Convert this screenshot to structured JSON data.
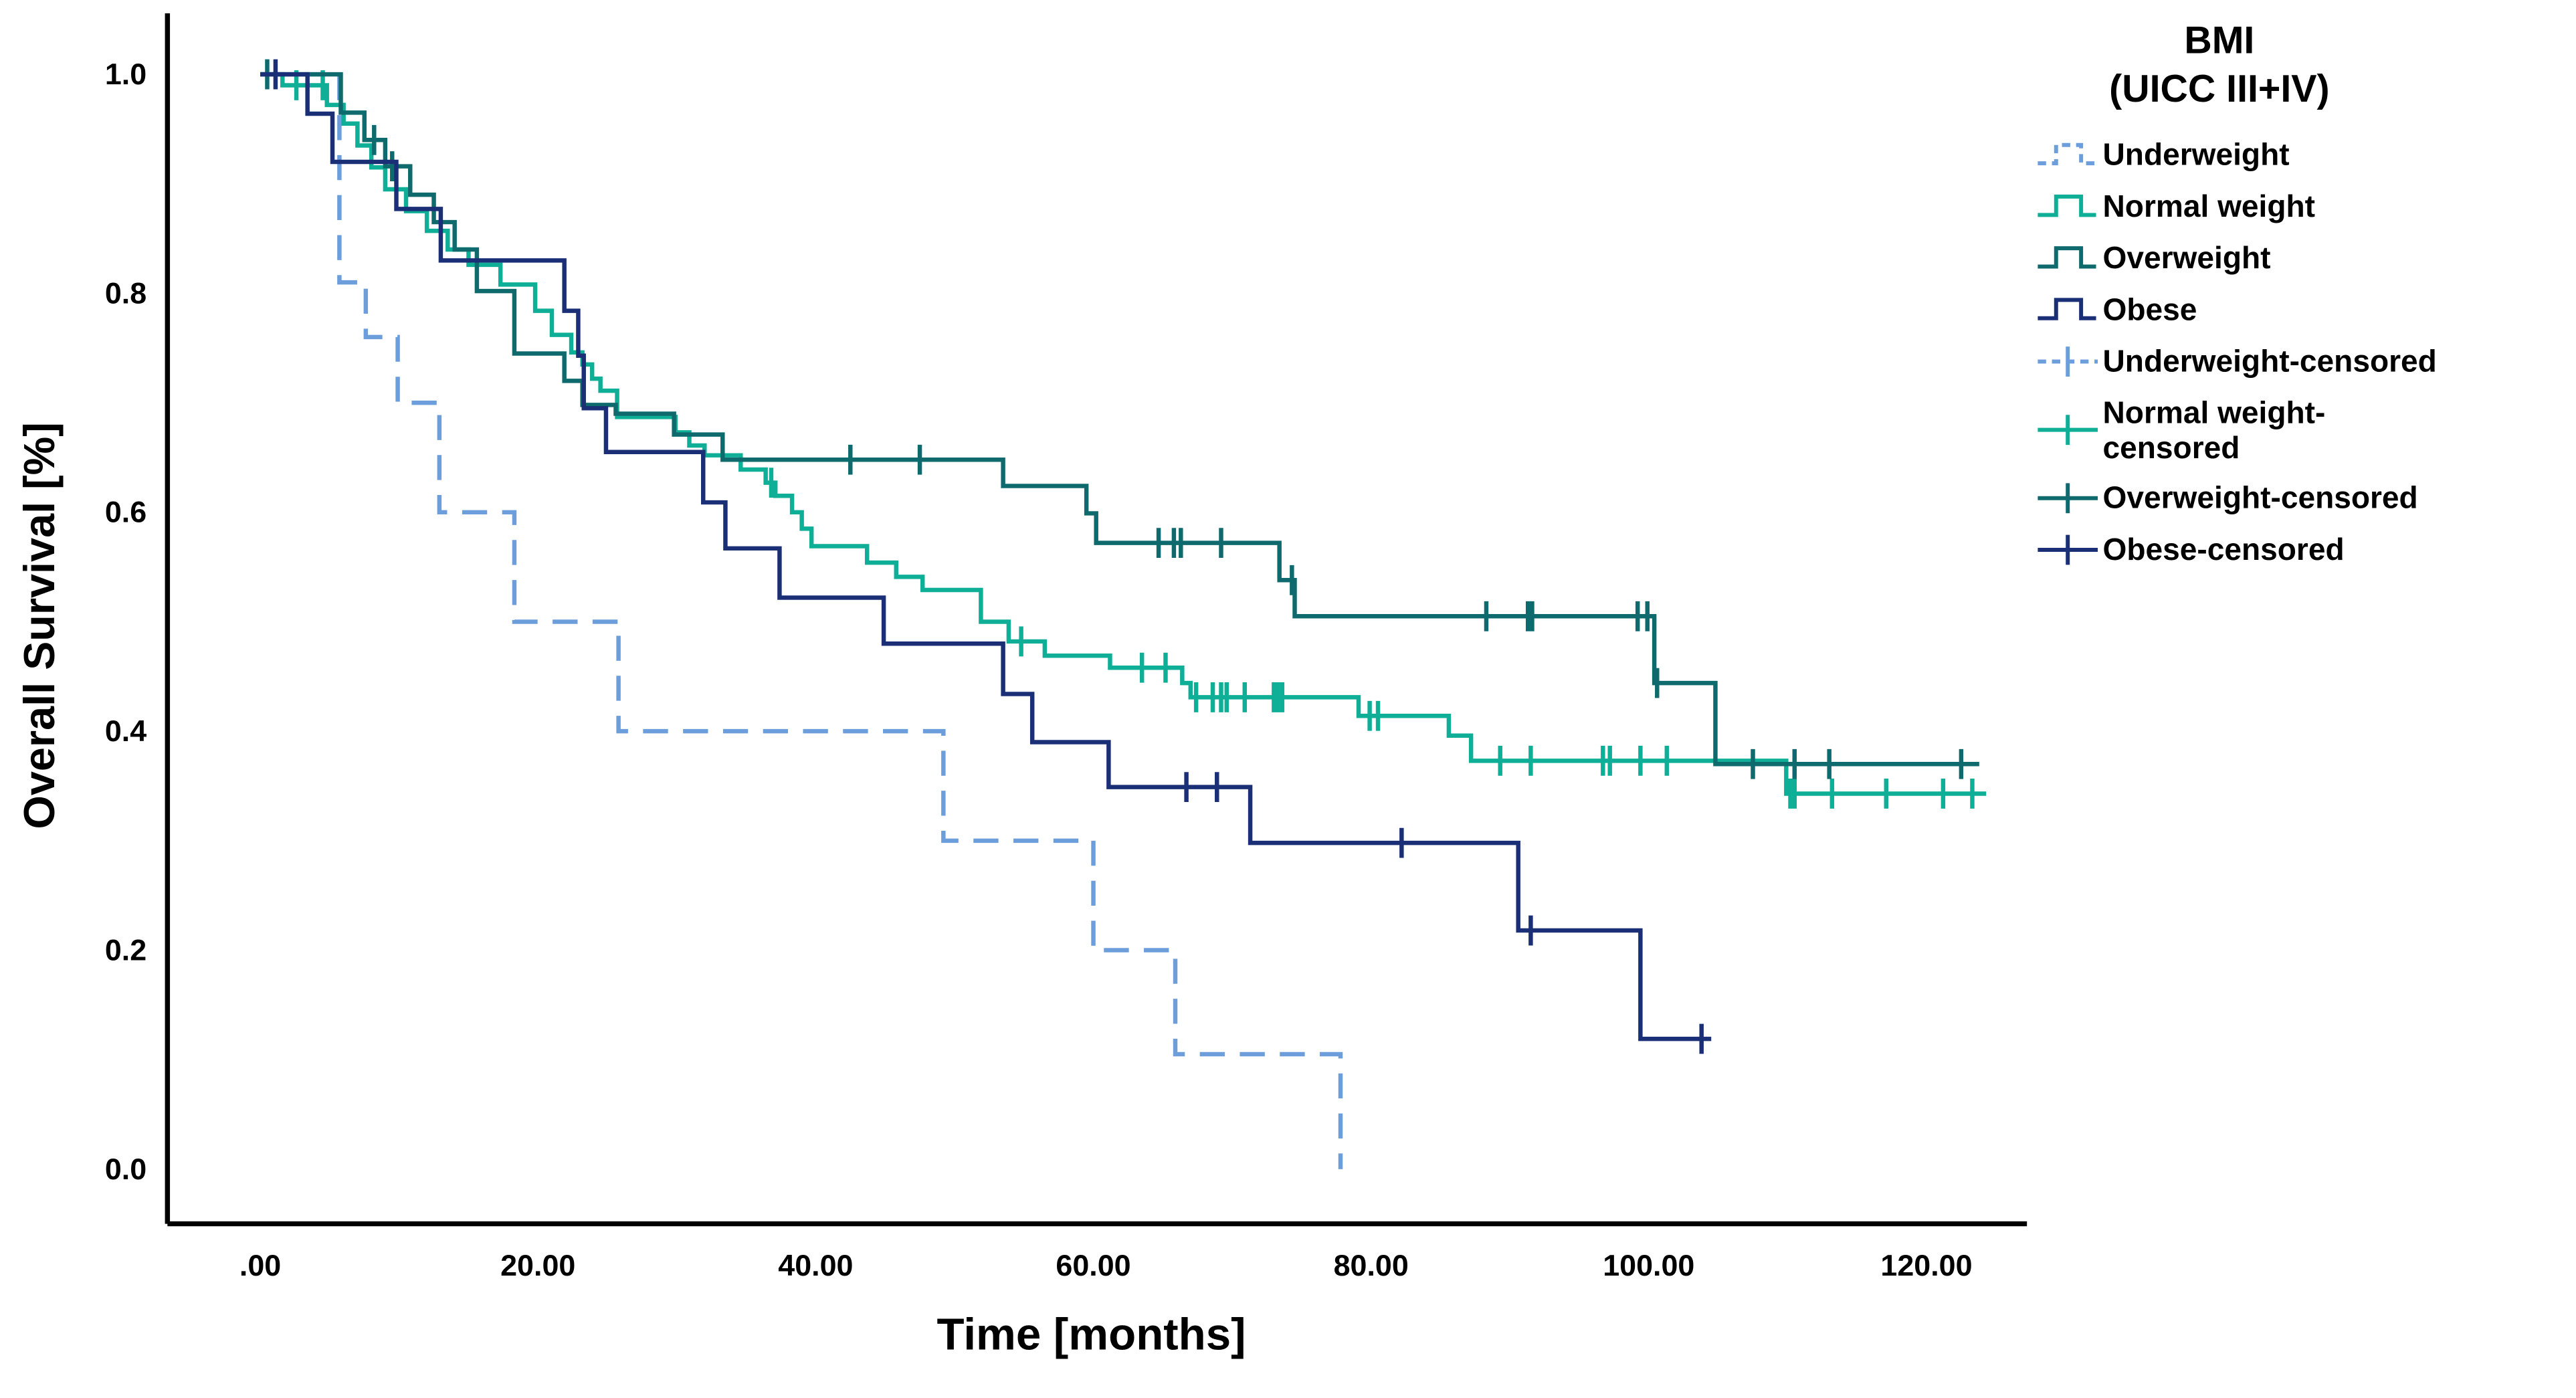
{
  "chart_data": {
    "type": "line",
    "subtype": "kaplan-meier-step",
    "title": "",
    "xlabel": "Time [months]",
    "ylabel": "Overall Survival [%]",
    "xlim": [
      0,
      127.2
    ],
    "ylim": [
      0,
      1.0
    ],
    "grid": false,
    "legend_position": "right",
    "xticks": {
      "values": [
        0,
        20,
        40,
        60,
        80,
        100,
        120
      ],
      "labels": [
        ".00",
        "20.00",
        "40.00",
        "60.00",
        "80.00",
        "100.00",
        "120.00"
      ]
    },
    "yticks": {
      "values": [
        0,
        0.2,
        0.4,
        0.6,
        0.8,
        1.0
      ],
      "labels": [
        "0.0",
        "0.2",
        "0.4",
        "0.6",
        "0.8",
        "1.0"
      ]
    },
    "series": [
      {
        "name": "Underweight",
        "color": "#6D9EDC",
        "dashed": true,
        "steps": [
          [
            0,
            1.0
          ],
          [
            5.7,
            0.81
          ],
          [
            7.6,
            0.76
          ],
          [
            9.9,
            0.7
          ],
          [
            12.9,
            0.6
          ],
          [
            18.3,
            0.5
          ],
          [
            25.8,
            0.4
          ],
          [
            49.2,
            0.3
          ],
          [
            60.0,
            0.2
          ],
          [
            65.9,
            0.105
          ],
          [
            77.8,
            0.0
          ]
        ],
        "end": 77.8,
        "censors": []
      },
      {
        "name": "Normal weight",
        "color": "#0EAE97",
        "dashed": false,
        "steps": [
          [
            0,
            1.0
          ],
          [
            1.6,
            0.99
          ],
          [
            4.8,
            0.972
          ],
          [
            6,
            0.955
          ],
          [
            7,
            0.935
          ],
          [
            8,
            0.915
          ],
          [
            9,
            0.895
          ],
          [
            10.5,
            0.875
          ],
          [
            12,
            0.857
          ],
          [
            13.5,
            0.84
          ],
          [
            15,
            0.826
          ],
          [
            17.3,
            0.808
          ],
          [
            19.8,
            0.784
          ],
          [
            21,
            0.762
          ],
          [
            22.4,
            0.746
          ],
          [
            23.2,
            0.735
          ],
          [
            23.9,
            0.722
          ],
          [
            24.5,
            0.711
          ],
          [
            25.7,
            0.687
          ],
          [
            29.9,
            0.673
          ],
          [
            30.9,
            0.661
          ],
          [
            32,
            0.652
          ],
          [
            34.6,
            0.639
          ],
          [
            36.4,
            0.627
          ],
          [
            37.1,
            0.615
          ],
          [
            38.3,
            0.6
          ],
          [
            39,
            0.585
          ],
          [
            39.7,
            0.569
          ],
          [
            43.7,
            0.554
          ],
          [
            45.8,
            0.541
          ],
          [
            47.7,
            0.529
          ],
          [
            51.9,
            0.5
          ],
          [
            53.9,
            0.482
          ],
          [
            56.5,
            0.469
          ],
          [
            61.2,
            0.458
          ],
          [
            66.4,
            0.444
          ],
          [
            67,
            0.431
          ],
          [
            79.1,
            0.414
          ],
          [
            85.6,
            0.396
          ],
          [
            87.2,
            0.373
          ],
          [
            109.9,
            0.343
          ]
        ],
        "end": 124.3,
        "censors": [
          2.6,
          4.5,
          36.8,
          54.8,
          63.5,
          65.2,
          67.4,
          68.6,
          69.2,
          69.6,
          70.9,
          73.0,
          73.3,
          73.6,
          79.9,
          80.5,
          89.3,
          91.5,
          96.7,
          97.2,
          99.4,
          101.3,
          110.2,
          110.5,
          113.2,
          117.1,
          121.2,
          123.3
        ]
      },
      {
        "name": "Overweight",
        "color": "#0F6A6E",
        "dashed": false,
        "steps": [
          [
            0,
            1.0
          ],
          [
            5.8,
            0.965
          ],
          [
            7.5,
            0.94
          ],
          [
            9,
            0.916
          ],
          [
            10.8,
            0.89
          ],
          [
            12.5,
            0.865
          ],
          [
            14,
            0.84
          ],
          [
            15.6,
            0.802
          ],
          [
            18.3,
            0.745
          ],
          [
            21.9,
            0.72
          ],
          [
            23.2,
            0.698
          ],
          [
            25.6,
            0.69
          ],
          [
            29.8,
            0.671
          ],
          [
            33.3,
            0.648
          ],
          [
            53.5,
            0.624
          ],
          [
            59.5,
            0.599
          ],
          [
            60.2,
            0.572
          ],
          [
            73.4,
            0.538
          ],
          [
            74.5,
            0.505
          ],
          [
            100.4,
            0.444
          ],
          [
            104.8,
            0.37
          ]
        ],
        "end": 123.8,
        "censors": [
          0.5,
          8.2,
          9.5,
          42.5,
          47.5,
          64.7,
          65.8,
          66.3,
          69.2,
          74.3,
          88.3,
          91.3,
          91.6,
          99.2,
          99.9,
          100.6,
          107.5,
          110.5,
          113.0,
          122.5
        ]
      },
      {
        "name": "Obese",
        "color": "#1A2F76",
        "dashed": false,
        "steps": [
          [
            0,
            1.0
          ],
          [
            3.4,
            0.964
          ],
          [
            5.2,
            0.92
          ],
          [
            9.8,
            0.877
          ],
          [
            13,
            0.83
          ],
          [
            21.9,
            0.784
          ],
          [
            22.9,
            0.743
          ],
          [
            23.3,
            0.695
          ],
          [
            24.9,
            0.655
          ],
          [
            31.9,
            0.609
          ],
          [
            33.5,
            0.567
          ],
          [
            37.4,
            0.522
          ],
          [
            44.9,
            0.48
          ],
          [
            53.5,
            0.434
          ],
          [
            55.6,
            0.39
          ],
          [
            61.1,
            0.349
          ],
          [
            71.3,
            0.298
          ],
          [
            90.6,
            0.218
          ],
          [
            99.4,
            0.119
          ]
        ],
        "end": 104.5,
        "censors": [
          1.1,
          66.7,
          68.9,
          82.2,
          91.5,
          103.8
        ]
      }
    ],
    "legend": {
      "title": "BMI\n(UICC III+IV)",
      "items": [
        {
          "label": "Underweight",
          "series": "Underweight",
          "censored": false
        },
        {
          "label": "Normal weight",
          "series": "Normal weight",
          "censored": false
        },
        {
          "label": "Overweight",
          "series": "Overweight",
          "censored": false
        },
        {
          "label": "Obese",
          "series": "Obese",
          "censored": false
        },
        {
          "label": "Underweight-censored",
          "series": "Underweight",
          "censored": true
        },
        {
          "label": "Normal weight-\ncensored",
          "series": "Normal weight",
          "censored": true
        },
        {
          "label": "Overweight-censored",
          "series": "Overweight",
          "censored": true
        },
        {
          "label": "Obese-censored",
          "series": "Obese",
          "censored": true
        }
      ]
    }
  }
}
